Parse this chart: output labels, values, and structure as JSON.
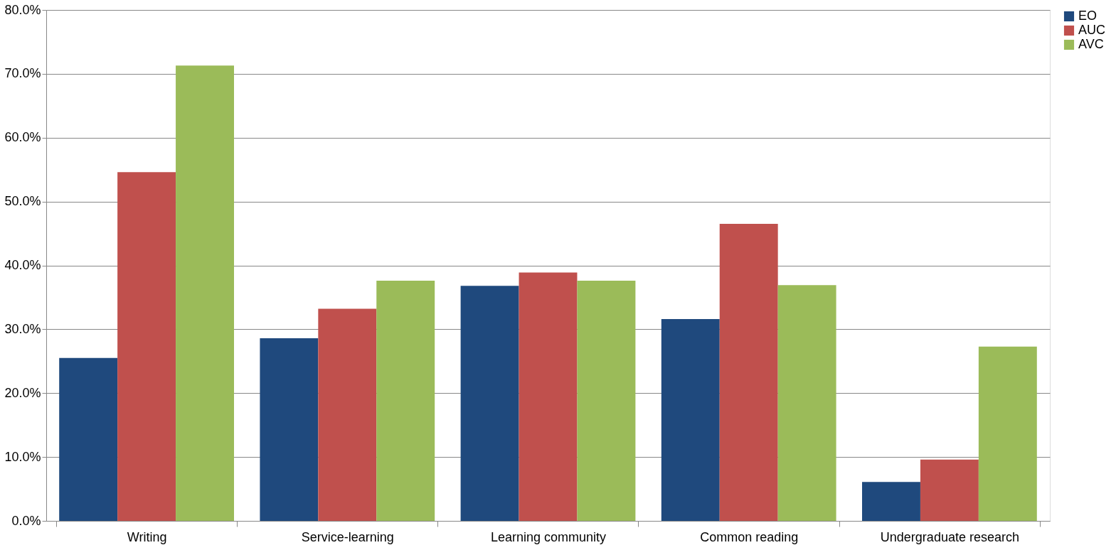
{
  "chart_data": {
    "type": "bar",
    "categories": [
      "Writing",
      "Service-learning",
      "Learning community",
      "Common reading",
      "Undergraduate research"
    ],
    "series": [
      {
        "name": "EO",
        "color": "#1f497d",
        "values": [
          25.5,
          28.6,
          36.8,
          31.6,
          6.1
        ]
      },
      {
        "name": "AUC",
        "color": "#c0504d",
        "values": [
          54.6,
          33.2,
          38.9,
          46.5,
          9.6
        ]
      },
      {
        "name": "AVC",
        "color": "#9bbb59",
        "values": [
          71.3,
          37.6,
          37.6,
          36.9,
          27.3
        ]
      }
    ],
    "ylim": [
      0,
      80
    ],
    "yticks": [
      {
        "value": 0,
        "label": "0.0%"
      },
      {
        "value": 10,
        "label": "10.0%"
      },
      {
        "value": 20,
        "label": "20.0%"
      },
      {
        "value": 30,
        "label": "30.0%"
      },
      {
        "value": 40,
        "label": "40.0%"
      },
      {
        "value": 50,
        "label": "50.0%"
      },
      {
        "value": 60,
        "label": "60.0%"
      },
      {
        "value": 70,
        "label": "70.0%"
      },
      {
        "value": 80,
        "label": "80.0%"
      }
    ],
    "grid": "y",
    "legend": "right"
  }
}
